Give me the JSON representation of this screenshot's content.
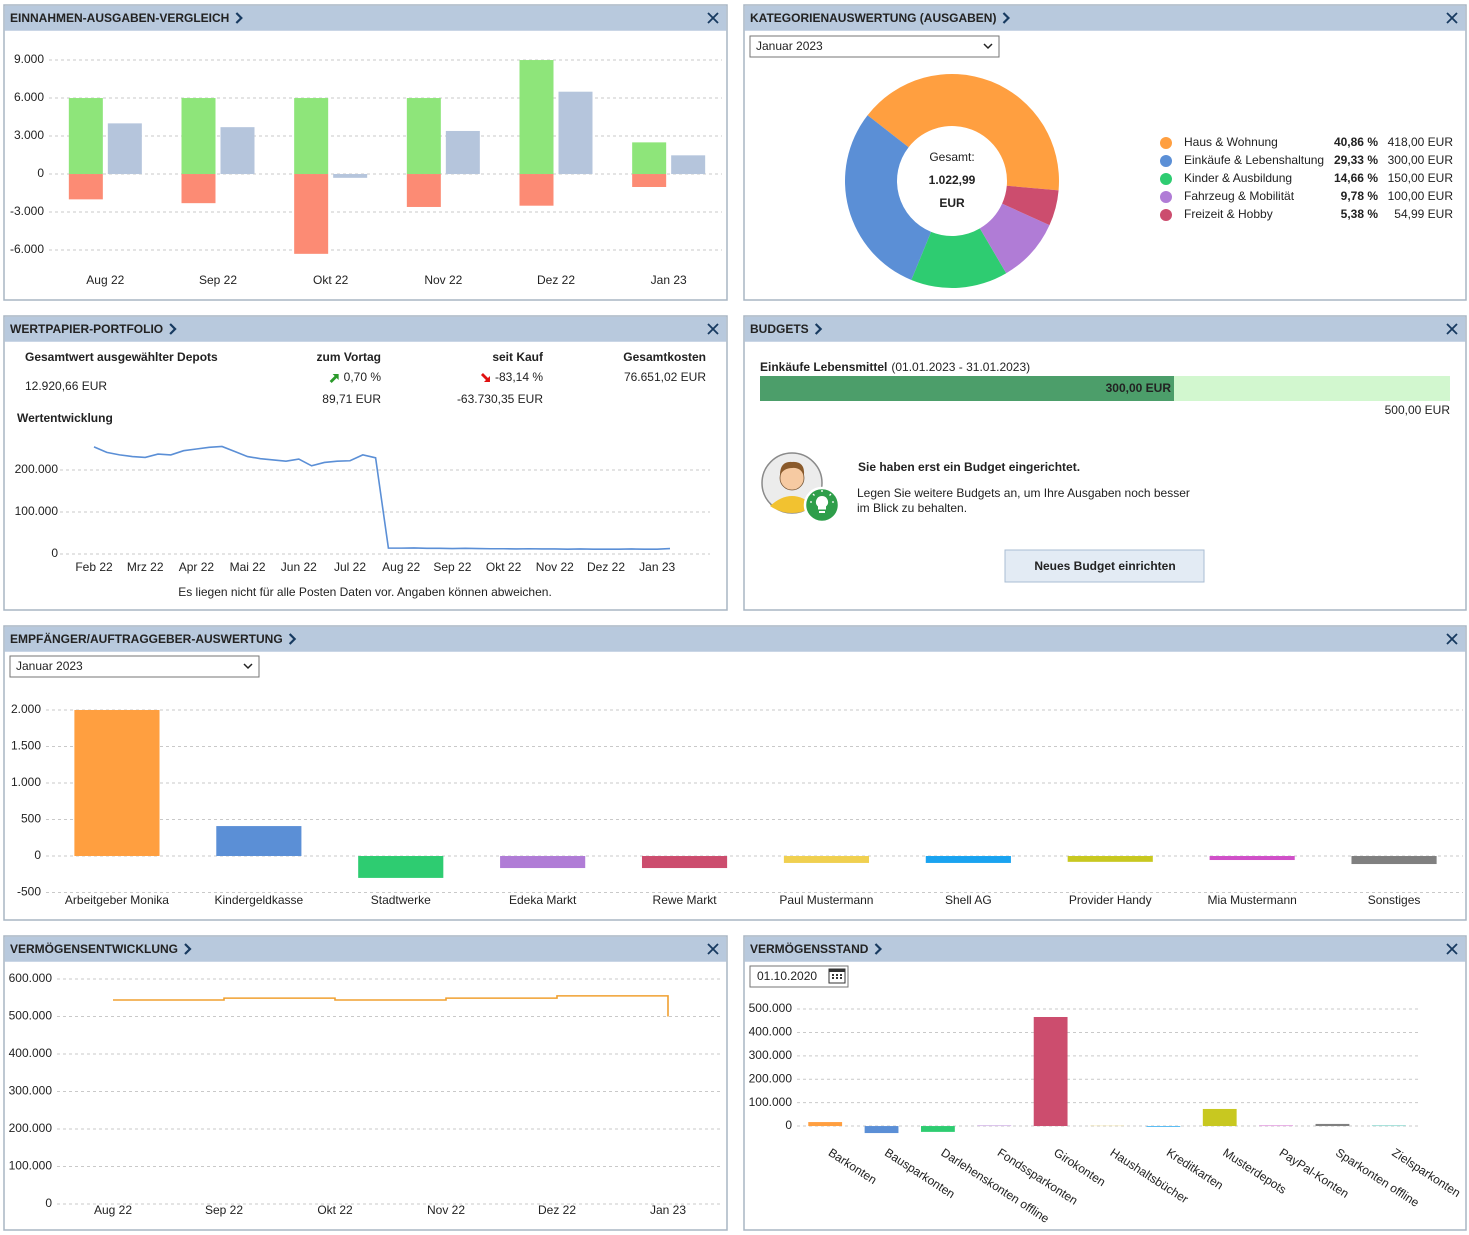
{
  "income": {
    "title": "EINNAHMEN-AUSGABEN-VERGLEICH",
    "chart": {
      "type": "bar",
      "categories": [
        "Aug 22",
        "Sep 22",
        "Okt 22",
        "Nov 22",
        "Dez 22",
        "Jan 23"
      ],
      "series": [
        {
          "color": "#8ee57a",
          "values": [
            6000,
            6000,
            6000,
            6000,
            9000,
            2500
          ]
        },
        {
          "color": "#fc8b74",
          "values": [
            -2000,
            -2300,
            -6300,
            -2600,
            -2500,
            -1023
          ]
        },
        {
          "color": "#b5c5dc",
          "values": [
            4000,
            3700,
            -300,
            3400,
            6500,
            1477
          ]
        }
      ],
      "ylim": [
        -7000,
        11000
      ],
      "yticks": [
        {
          "value": -6000,
          "label": "-6.000"
        },
        {
          "value": -3000,
          "label": "-3.000"
        },
        0,
        {
          "value": 3000,
          "label": "3.000"
        },
        {
          "value": 6000,
          "label": "6.000"
        },
        {
          "value": 9000,
          "label": "9.000"
        }
      ],
      "grid": true
    }
  },
  "expense_categories": {
    "title": "KATEGORIENAUSWERTUNG (AUSGABEN)",
    "period": "Januar 2023",
    "chart": {
      "type": "donut",
      "total_caption": "Gesamt:",
      "total": "1.022,99",
      "unit": "EUR",
      "categories": [
        "Haus & Wohnung",
        "Einkäufe & Lebenshaltung",
        "Kinder & Ausbildung",
        "Fahrzeug & Mobilität",
        "Freizeit & Hobby"
      ],
      "values": [
        418,
        300,
        150,
        100,
        54.99
      ],
      "value_labels": [
        "418,00 EUR",
        "300,00 EUR",
        "150,00 EUR",
        "100,00 EUR",
        "54,99 EUR"
      ],
      "percent_labels": [
        "40,86 %",
        "29,33 %",
        "14,66 %",
        "9,78 %",
        "5,38 %"
      ],
      "colors": [
        "#ff9f40",
        "#5b8fd6",
        "#2ecc71",
        "#b07cd6",
        "#cc4d6e"
      ]
    }
  },
  "portfolio": {
    "title": "WERTPAPIER-PORTFOLIO",
    "total_caption": "Gesamtwert ausgewählter Depots",
    "total": "12.920,66 EUR",
    "columns": [
      {
        "header": "zum Vortag",
        "percent": "0,70 %",
        "amount": "89,71 EUR",
        "trend": "up"
      },
      {
        "header": "seit Kauf",
        "percent": "-83,14 %",
        "amount": "-63.730,35 EUR",
        "trend": "down"
      },
      {
        "header": "Gesamtkosten",
        "amount": "76.651,02 EUR"
      }
    ],
    "chart": {
      "type": "line",
      "title": "Wertentwicklung",
      "categories": [
        "Feb 22",
        null,
        null,
        null,
        "Mrz 22",
        null,
        null,
        null,
        "Apr 22",
        null,
        null,
        null,
        "Mai 22",
        null,
        null,
        null,
        "Jun 22",
        null,
        null,
        null,
        "Jul 22",
        null,
        null,
        null,
        "Aug 22",
        null,
        null,
        null,
        "Sep 22",
        null,
        null,
        null,
        "Okt 22",
        null,
        null,
        null,
        "Nov 22",
        null,
        null,
        null,
        "Dez 22",
        null,
        null,
        null,
        "Jan 23",
        null
      ],
      "values": [
        255000,
        242000,
        236000,
        232000,
        230000,
        238000,
        236000,
        246000,
        250000,
        254000,
        256000,
        244000,
        232000,
        227000,
        224000,
        221000,
        226000,
        210000,
        218000,
        221000,
        222000,
        236000,
        229000,
        14000,
        14000,
        14500,
        13500,
        13500,
        13000,
        13500,
        13000,
        12500,
        12500,
        12000,
        12500,
        12000,
        12000,
        11500,
        12000,
        11500,
        11500,
        11500,
        12000,
        11500,
        11500,
        12900
      ],
      "color": "#5b8fd6",
      "ylim": [
        0,
        270000
      ],
      "yticks": [
        0,
        {
          "value": 100000,
          "label": "100.000"
        },
        {
          "value": 200000,
          "label": "200.000"
        }
      ],
      "grid": true
    },
    "note": "Es liegen nicht für alle Posten Daten vor. Angaben können abweichen."
  },
  "budgets": {
    "title": "BUDGETS",
    "budget": {
      "name": "Einkäufe Lebensmittel",
      "period": "(01.01.2023 - 31.01.2023)",
      "spent": 300,
      "spent_label": "300,00 EUR",
      "limit": 500,
      "limit_label": "500,00 EUR",
      "color": "#4c9e6a",
      "track_color": "#d2f7cf"
    },
    "message": {
      "heading": "Sie haben erst ein Budget eingerichtet.",
      "lines": [
        "Legen Sie weitere Budgets an, um Ihre Ausgaben noch besser",
        "im Blick zu behalten."
      ]
    },
    "button": "Neues Budget einrichten"
  },
  "payees": {
    "title": "EMPFÄNGER/AUFTRAGGEBER-AUSWERTUNG",
    "period": "Januar 2023",
    "chart": {
      "type": "bar",
      "categories": [
        "Arbeitgeber Monika",
        "Kindergeldkasse",
        "Stadtwerke",
        "Edeka Markt",
        "Rewe Markt",
        "Paul Mustermann",
        "Shell AG",
        "Provider Handy",
        "Mia Mustermann",
        "Sonstiges"
      ],
      "values": [
        2000,
        410,
        -300,
        -165,
        -165,
        -95,
        -95,
        -80,
        -55,
        -110
      ],
      "colors": [
        "#ff9f40",
        "#5b8fd6",
        "#2ecc71",
        "#b07cd6",
        "#cc4d6e",
        "#f0d050",
        "#1aa3f0",
        "#c8c820",
        "#d050c8",
        "#808080"
      ],
      "ylim": [
        -530,
        2200
      ],
      "yticks": [
        -500,
        0,
        500,
        {
          "value": 1000,
          "label": "1.000"
        },
        {
          "value": 1500,
          "label": "1.500"
        },
        {
          "value": 2000,
          "label": "2.000"
        }
      ],
      "grid": true
    }
  },
  "wealth_trend": {
    "title": "VERMÖGENSENTWICKLUNG",
    "chart": {
      "type": "line",
      "step": true,
      "categories": [
        "Aug 22",
        "Sep 22",
        "Okt 22",
        "Nov 22",
        "Dez 22",
        "Jan 23"
      ],
      "values": [
        544000,
        549000,
        544000,
        549000,
        555000,
        500000
      ],
      "color": "#f0a030",
      "ylim": [
        0,
        630000
      ],
      "yticks": [
        0,
        {
          "value": 100000,
          "label": "100.000"
        },
        {
          "value": 200000,
          "label": "200.000"
        },
        {
          "value": 300000,
          "label": "300.000"
        },
        {
          "value": 400000,
          "label": "400.000"
        },
        {
          "value": 500000,
          "label": "500.000"
        },
        {
          "value": 600000,
          "label": "600.000"
        }
      ],
      "grid": true
    }
  },
  "wealth_state": {
    "title": "VERMÖGENSSTAND",
    "date": "01.10.2020",
    "chart": {
      "type": "bar",
      "categories": [
        "Barkonten",
        "Bausparkonten",
        "Darlehenskonten offline",
        "Fondssparkonten",
        "Girokonten",
        "Haushaltsbücher",
        "Kreditkarten",
        "Musterdepots",
        "PayPal-Konten",
        "Sparkonten offline",
        "Zielsparkonten"
      ],
      "values": [
        17000,
        -30000,
        -25000,
        2000,
        466000,
        1000,
        -3000,
        73000,
        2000,
        9000,
        2000
      ],
      "colors": [
        "#ff9f40",
        "#5b8fd6",
        "#2ecc71",
        "#b07cd6",
        "#cc4d6e",
        "#f0d050",
        "#1aa3f0",
        "#c8c820",
        "#d050c8",
        "#808080",
        "#3cc0b0"
      ],
      "ylim": [
        -40000,
        560000
      ],
      "yticks": [
        0,
        {
          "value": 100000,
          "label": "100.000"
        },
        {
          "value": 200000,
          "label": "200.000"
        },
        {
          "value": 300000,
          "label": "300.000"
        },
        {
          "value": 400000,
          "label": "400.000"
        },
        {
          "value": 500000,
          "label": "500.000"
        }
      ],
      "grid": true
    }
  }
}
